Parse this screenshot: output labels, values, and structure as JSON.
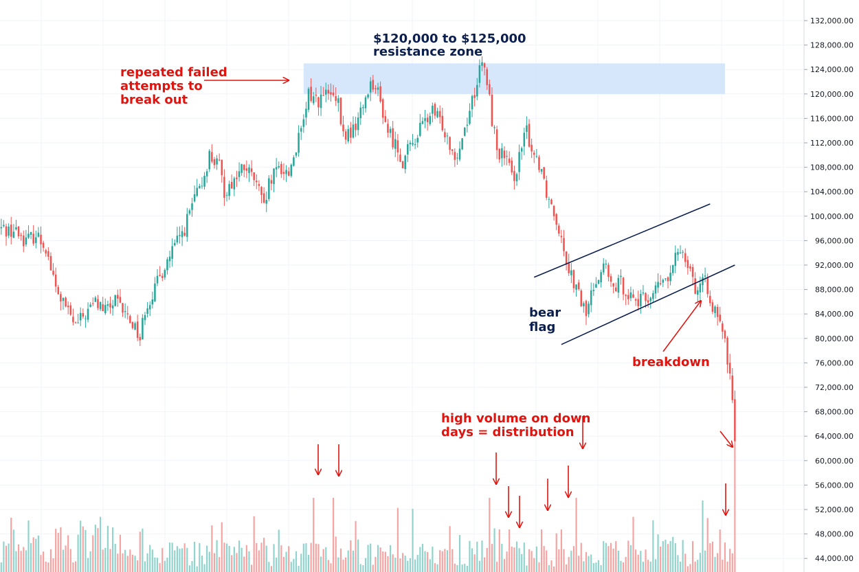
{
  "colors": {
    "up": "#26a69a",
    "down": "#ef5350",
    "up_volume": "#8fd3cc",
    "down_volume": "#f5a3a1",
    "resistance_zone": "#cfe3fb",
    "annotation_red": "#e0140f",
    "annotation_navy": "#0b1f4f",
    "grid": "#f0f3fa"
  },
  "annotations": {
    "resistance_title": "$120,000 to $125,000",
    "resistance_subtitle": "resistance zone",
    "failed_line1": "repeated failed",
    "failed_line2": "attempts to",
    "failed_line3": "break out",
    "bear_line1": "bear",
    "bear_line2": "flag",
    "breakdown": "breakdown",
    "volume_line1": "high volume on down",
    "volume_line2": "days = distribution"
  },
  "chart_data": {
    "type": "candlestick",
    "title": "",
    "xlabel": "",
    "ylabel": "",
    "ylim": [
      43000,
      133000
    ],
    "grid": true,
    "y_axis_side": "right",
    "y_ticks": [
      "132,000.00",
      "128,000.00",
      "124,000.00",
      "120,000.00",
      "116,000.00",
      "112,000.00",
      "108,000.00",
      "104,000.00",
      "100,000.00",
      "96,000.00",
      "92,000.00",
      "88,000.00",
      "84,000.00",
      "80,000.00",
      "76,000.00",
      "72,000.00",
      "68,000.00",
      "64,000.00",
      "60,000.00",
      "56,000.00",
      "52,000.00",
      "48,000.00",
      "44,000.00"
    ],
    "resistance_zone": [
      120000,
      125000
    ],
    "price_path": [
      [
        0,
        98000
      ],
      [
        6,
        97500
      ],
      [
        10,
        96000
      ],
      [
        14,
        97000
      ],
      [
        18,
        95000
      ],
      [
        22,
        88000
      ],
      [
        26,
        85000
      ],
      [
        30,
        82000
      ],
      [
        34,
        84000
      ],
      [
        38,
        86000
      ],
      [
        42,
        84500
      ],
      [
        46,
        86000
      ],
      [
        50,
        84000
      ],
      [
        54,
        82000
      ],
      [
        56,
        80000
      ],
      [
        58,
        85000
      ],
      [
        62,
        88000
      ],
      [
        66,
        92000
      ],
      [
        70,
        95000
      ],
      [
        74,
        98000
      ],
      [
        78,
        103000
      ],
      [
        80,
        104000
      ],
      [
        84,
        110000
      ],
      [
        88,
        108000
      ],
      [
        90,
        104000
      ],
      [
        94,
        106000
      ],
      [
        98,
        108000
      ],
      [
        102,
        106000
      ],
      [
        104,
        104000
      ],
      [
        106,
        101000
      ],
      [
        108,
        105000
      ],
      [
        112,
        108000
      ],
      [
        116,
        107000
      ],
      [
        118,
        110000
      ],
      [
        122,
        115000
      ],
      [
        124,
        120000
      ],
      [
        128,
        119000
      ],
      [
        132,
        120000
      ],
      [
        136,
        118000
      ],
      [
        138,
        113000
      ],
      [
        142,
        114000
      ],
      [
        146,
        118000
      ],
      [
        148,
        121000
      ],
      [
        150,
        122000
      ],
      [
        152,
        120000
      ],
      [
        156,
        114000
      ],
      [
        160,
        111000
      ],
      [
        162,
        109000
      ],
      [
        166,
        112000
      ],
      [
        170,
        115000
      ],
      [
        174,
        117000
      ],
      [
        178,
        115000
      ],
      [
        182,
        111000
      ],
      [
        184,
        110000
      ],
      [
        188,
        116000
      ],
      [
        192,
        122000
      ],
      [
        194,
        125000
      ],
      [
        196,
        122000
      ],
      [
        198,
        116000
      ],
      [
        200,
        111000
      ],
      [
        204,
        109000
      ],
      [
        206,
        106000
      ],
      [
        208,
        108000
      ],
      [
        212,
        114000
      ],
      [
        214,
        111000
      ],
      [
        218,
        108000
      ],
      [
        220,
        104000
      ],
      [
        222,
        102000
      ],
      [
        226,
        97000
      ],
      [
        228,
        93000
      ],
      [
        232,
        88000
      ],
      [
        236,
        84000
      ],
      [
        240,
        90000
      ],
      [
        244,
        92000
      ],
      [
        246,
        88000
      ],
      [
        250,
        89000
      ],
      [
        254,
        87000
      ],
      [
        258,
        86000
      ],
      [
        262,
        87000
      ],
      [
        266,
        89000
      ],
      [
        270,
        90000
      ],
      [
        272,
        93000
      ],
      [
        274,
        95000
      ],
      [
        278,
        92000
      ],
      [
        280,
        88000
      ],
      [
        284,
        89000
      ],
      [
        286,
        87000
      ],
      [
        288,
        84000
      ],
      [
        290,
        82000
      ],
      [
        292,
        79000
      ],
      [
        294,
        74000
      ],
      [
        296,
        64000
      ]
    ],
    "bear_flag_channel": {
      "upper": [
        [
          215,
          90000
        ],
        [
          286,
          102000
        ]
      ],
      "lower": [
        [
          226,
          79000
        ],
        [
          296,
          92000
        ]
      ]
    },
    "volume_spikes": [
      {
        "x": 126,
        "direction": "down",
        "level": "high"
      },
      {
        "x": 134,
        "direction": "down",
        "level": "high"
      },
      {
        "x": 197,
        "direction": "down",
        "level": "high"
      },
      {
        "x": 201,
        "direction": "down",
        "level": "medium"
      },
      {
        "x": 205,
        "direction": "down",
        "level": "medium"
      },
      {
        "x": 218,
        "direction": "down",
        "level": "medium"
      },
      {
        "x": 226,
        "direction": "down",
        "level": "medium"
      },
      {
        "x": 232,
        "direction": "down",
        "level": "high"
      },
      {
        "x": 290,
        "direction": "down",
        "level": "medium"
      },
      {
        "x": 296,
        "direction": "down",
        "level": "very high"
      }
    ]
  }
}
